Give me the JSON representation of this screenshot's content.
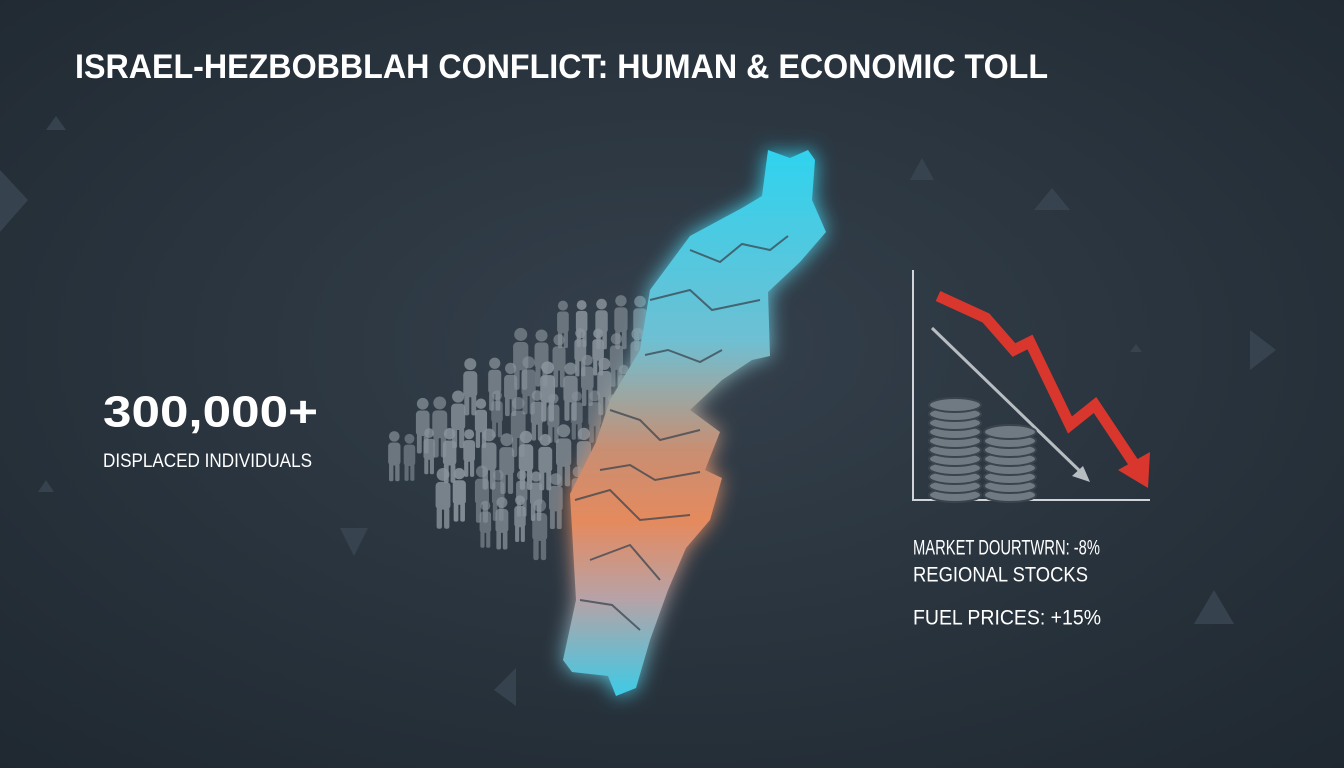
{
  "title": "ISRAEL-HEZBOBBLAH CONFLICT: HUMAN & ECONOMIC TOLL",
  "displacement": {
    "figure": "300,000+",
    "label": "DISPLACED INDIVIDUALS"
  },
  "economy": {
    "lines": [
      "MARKET DOURTWRN: -8%",
      "REGIONAL STOCKS",
      "FUEL PRICES: +15%"
    ]
  }
}
